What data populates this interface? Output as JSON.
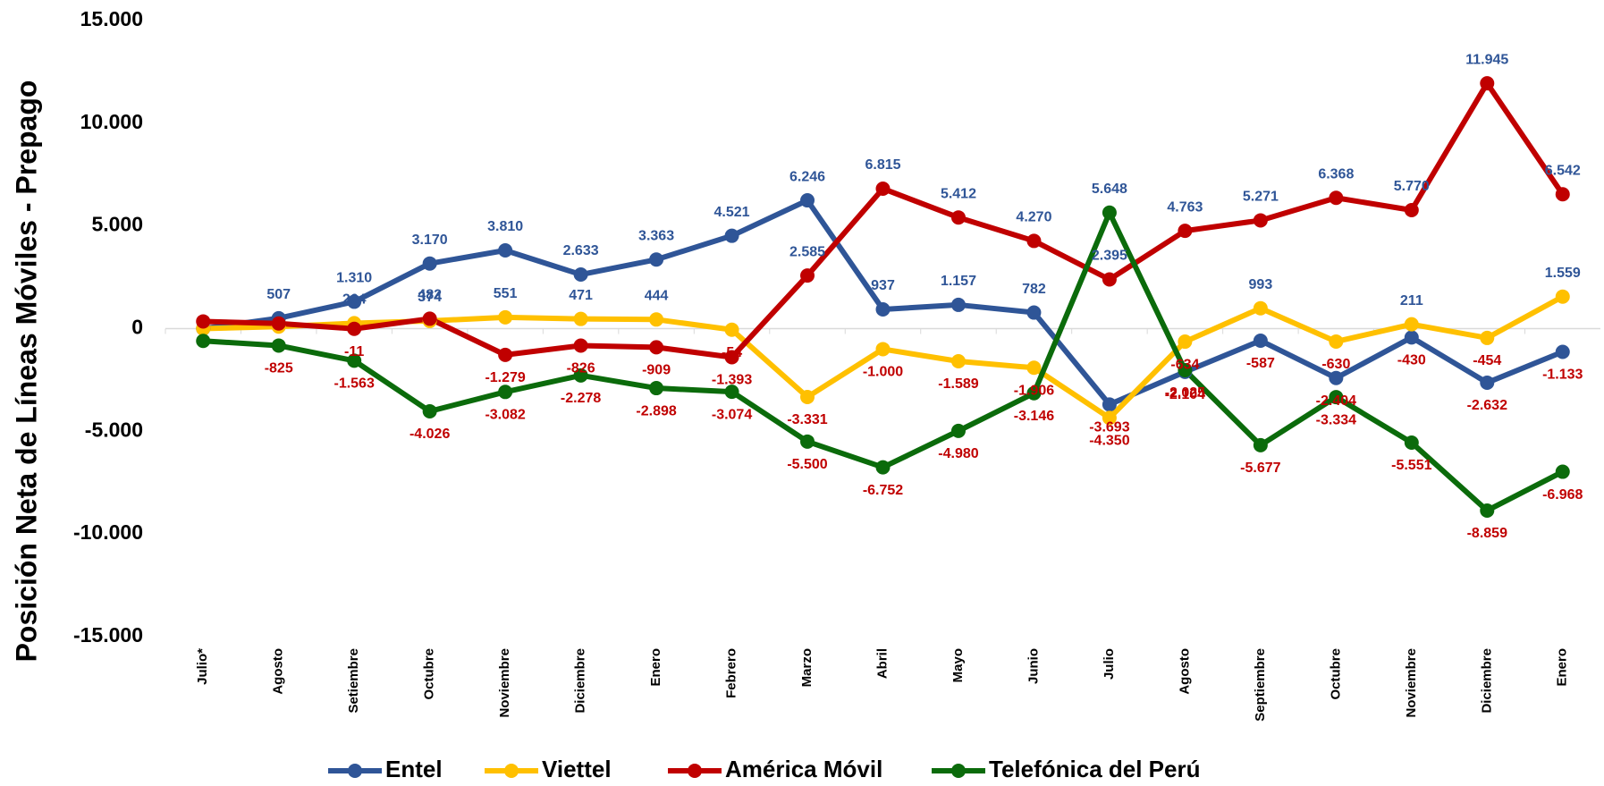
{
  "chart_data": {
    "type": "line",
    "y_label": "Posición Neta de Líneas Móviles - Prepago",
    "categories": [
      "Julio*",
      "Agosto",
      "Setiembre",
      "Octubre",
      "Noviembre",
      "Diciembre",
      "Enero",
      "Febrero",
      "Marzo",
      "Abril",
      "Mayo",
      "Junio",
      "Julio",
      "Agosto",
      "Septiembre",
      "Octubre",
      "Noviembre",
      "Diciembre",
      "Enero"
    ],
    "ylim": [
      -15000,
      15000
    ],
    "yticks": [
      {
        "value": -15000,
        "label": "-15.000"
      },
      {
        "value": -10000,
        "label": "-10.000"
      },
      {
        "value": -5000,
        "label": "-5.000"
      },
      0,
      {
        "value": 5000,
        "label": "5.000"
      },
      {
        "value": 10000,
        "label": "10.000"
      },
      {
        "value": 15000,
        "label": "15.000"
      }
    ],
    "positive_label_color": "#2f5597",
    "negative_label_color": "#c00000",
    "series": [
      {
        "name": "Entel",
        "color": "#2f5597",
        "values": [
          0,
          507,
          1310,
          3170,
          3810,
          2633,
          3363,
          4521,
          6246,
          937,
          1157,
          782,
          -3693,
          -2104,
          -587,
          -2404,
          -430,
          -2632,
          -1133
        ],
        "value_labels": [
          null,
          "507",
          "1.310",
          "3.170",
          "3.810",
          "2.633",
          "3.363",
          "4.521",
          "6.246",
          "937",
          "1.157",
          "782",
          "-3.693",
          "-2.104",
          "-587",
          "-2.404",
          "-430",
          "-2.632",
          "-1.133"
        ]
      },
      {
        "name": "Viettel",
        "color": "#ffc000",
        "values": [
          0,
          100,
          264,
          374,
          551,
          471,
          444,
          -54,
          -3331,
          -1000,
          -1589,
          -1906,
          -4350,
          -634,
          993,
          -630,
          211,
          -454,
          1559
        ],
        "value_labels": [
          null,
          null,
          "264",
          "374",
          "551",
          "471",
          "444",
          "-54",
          "-3.331",
          "-1.000",
          "-1.589",
          "-1.906",
          "-4.350",
          "-634",
          "993",
          "-630",
          "211",
          "-454",
          "1.559"
        ]
      },
      {
        "name": "América Móvil",
        "color": "#c00000",
        "values": [
          350,
          250,
          -11,
          482,
          -1279,
          -826,
          -909,
          -1393,
          2585,
          6815,
          5412,
          4270,
          2395,
          4763,
          5271,
          6368,
          5770,
          11945,
          6542
        ],
        "value_labels": [
          null,
          null,
          "-11",
          "482",
          "-1.279",
          "-826",
          "-909",
          "-1.393",
          "2.585",
          "6.815",
          "5.412",
          "4.270",
          "2.395",
          "4.763",
          "5.271",
          "6.368",
          "5.770",
          "11.945",
          "6.542"
        ]
      },
      {
        "name": "Telefónica del Perú",
        "color": "#0b6b0b",
        "values": [
          -600,
          -825,
          -1563,
          -4026,
          -3082,
          -2278,
          -2898,
          -3074,
          -5500,
          -6752,
          -4980,
          -3146,
          5648,
          -2025,
          -5677,
          -3334,
          -5551,
          -8859,
          -6968
        ],
        "value_labels": [
          null,
          "-825",
          "-1.563",
          "-4.026",
          "-3.082",
          "-2.278",
          "-2.898",
          "-3.074",
          "-5.500",
          "-6.752",
          "-4.980",
          "-3.146",
          "5.648",
          "-2.025",
          "-5.677",
          "-3.334",
          "-5.551",
          "-8.859",
          "-6.968"
        ]
      }
    ]
  }
}
